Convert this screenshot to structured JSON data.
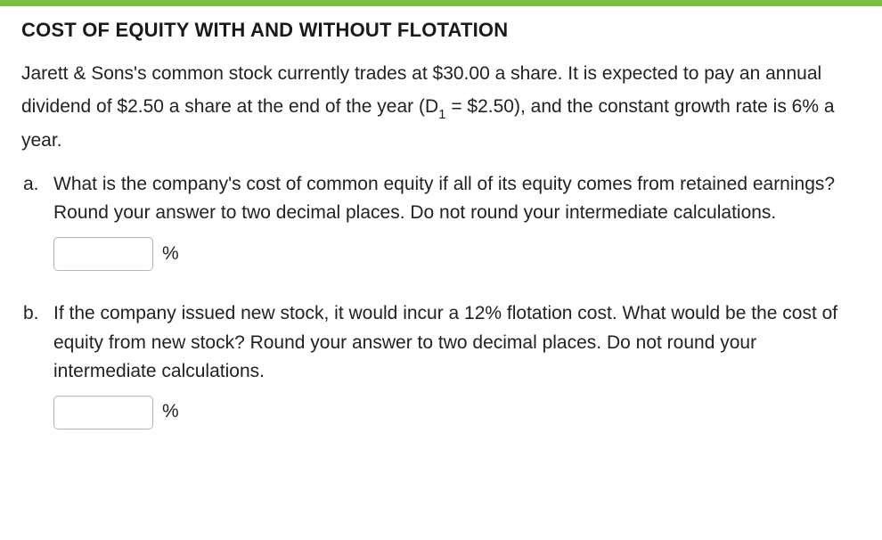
{
  "colors": {
    "accent_bar": "#7bc043",
    "text_primary": "#1a1a1a",
    "text_body": "#222222",
    "input_border": "#b7b7b7",
    "background": "#ffffff"
  },
  "typography": {
    "title_fontsize": 22,
    "body_fontsize": 21,
    "subscript_fontsize": 15
  },
  "title": "COST OF EQUITY WITH AND WITHOUT FLOTATION",
  "intro": {
    "part1": "Jarett & Sons's common stock currently trades at $30.00 a share. It is expected to pay an annual dividend of $2.50 a share at the end of the year (D",
    "sub": "1",
    "part2": " = $2.50), and the constant growth rate is 6% a year."
  },
  "questions": [
    {
      "marker": "a.",
      "text": "What is the company's cost of common equity if all of its equity comes from retained earnings? Round your answer to two decimal places. Do not round your intermediate calculations.",
      "answer_value": "",
      "unit": "%"
    },
    {
      "marker": "b.",
      "text": "If the company issued new stock, it would incur a 12% flotation cost. What would be the cost of equity from new stock? Round your answer to two decimal places. Do not round your intermediate calculations.",
      "answer_value": "",
      "unit": "%"
    }
  ]
}
